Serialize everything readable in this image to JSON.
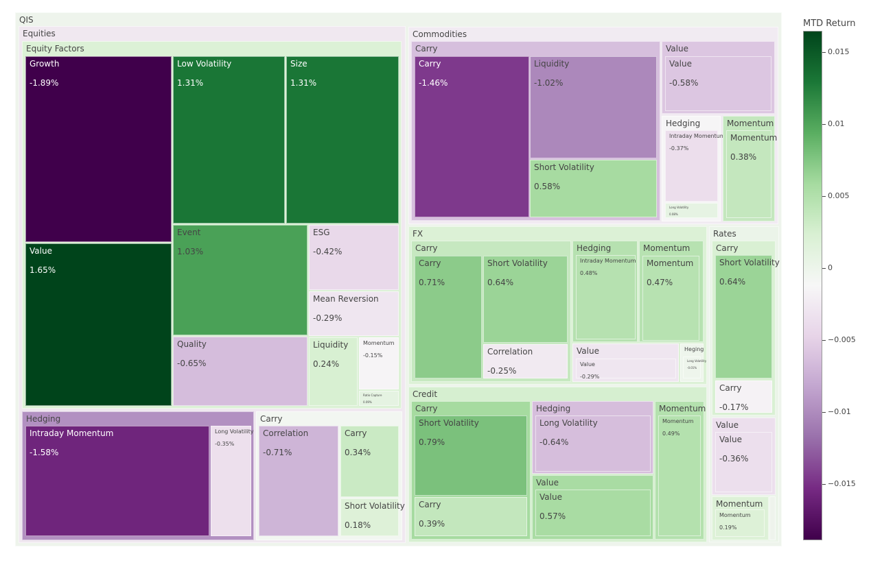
{
  "chart_data": {
    "type": "treemap",
    "title": "",
    "colorbar": {
      "title": "MTD Return",
      "colorscale": "PRGn",
      "range": [
        -0.0189,
        0.0165
      ],
      "ticks": [
        0.015,
        0.01,
        0.005,
        0,
        -0.005,
        -0.01,
        -0.015
      ],
      "tick_labels": [
        "0.015",
        "0.01",
        "0.005",
        "0",
        "−0.005",
        "−0.01",
        "−0.015"
      ]
    },
    "root": {
      "label": "QIS",
      "children": [
        {
          "label": "Equities",
          "children": [
            {
              "label": "Equity Factors",
              "children": [
                {
                  "label": "Growth",
                  "value": -0.0189,
                  "text": "-1.89%"
                },
                {
                  "label": "Value",
                  "value": 0.0165,
                  "text": "1.65%"
                },
                {
                  "label": "Low Volatility",
                  "value": 0.0131,
                  "text": "1.31%"
                },
                {
                  "label": "Size",
                  "value": 0.0131,
                  "text": "1.31%"
                },
                {
                  "label": "Event",
                  "value": 0.0103,
                  "text": "1.03%"
                },
                {
                  "label": "ESG",
                  "value": -0.0042,
                  "text": "-0.42%"
                },
                {
                  "label": "Mean Reversion",
                  "value": -0.0029,
                  "text": "-0.29%"
                },
                {
                  "label": "Quality",
                  "value": -0.0065,
                  "text": "-0.65%"
                },
                {
                  "label": "Liquidity",
                  "value": 0.0024,
                  "text": "0.24%"
                },
                {
                  "label": "Momentum",
                  "value": -0.0015,
                  "text": "-0.15%"
                },
                {
                  "label": "Ratio Capture",
                  "value": 0.0009,
                  "text": "0.09%"
                }
              ]
            },
            {
              "label": "Hedging",
              "children": [
                {
                  "label": "Intraday Momentum",
                  "value": -0.0158,
                  "text": "-1.58%"
                },
                {
                  "label": "Long Volatility",
                  "value": -0.0035,
                  "text": "-0.35%"
                }
              ]
            },
            {
              "label": "Carry",
              "children": [
                {
                  "label": "Correlation",
                  "value": -0.0071,
                  "text": "-0.71%"
                },
                {
                  "label": "Carry",
                  "value": 0.0034,
                  "text": "0.34%"
                },
                {
                  "label": "Short Volatility",
                  "value": 0.0018,
                  "text": "0.18%"
                }
              ]
            }
          ]
        },
        {
          "label": "Commodities",
          "children": [
            {
              "label": "Carry",
              "children": [
                {
                  "label": "Carry",
                  "value": -0.0146,
                  "text": "-1.46%"
                },
                {
                  "label": "Liquidity",
                  "value": -0.0102,
                  "text": "-1.02%"
                },
                {
                  "label": "Short Volatility",
                  "value": 0.0058,
                  "text": "0.58%"
                }
              ]
            },
            {
              "label": "Value",
              "children": [
                {
                  "label": "Value",
                  "value": -0.0058,
                  "text": "-0.58%"
                }
              ]
            },
            {
              "label": "Hedging",
              "children": [
                {
                  "label": "Intraday Momentum",
                  "value": -0.0037,
                  "text": "-0.37%"
                },
                {
                  "label": "Long Volatility",
                  "value": 0.0008,
                  "text": "0.08%"
                }
              ]
            },
            {
              "label": "Momentum",
              "children": [
                {
                  "label": "Momentum",
                  "value": 0.0038,
                  "text": "0.38%"
                }
              ]
            }
          ]
        },
        {
          "label": "FX",
          "children": [
            {
              "label": "Carry",
              "children": [
                {
                  "label": "Carry",
                  "value": 0.0071,
                  "text": "0.71%"
                },
                {
                  "label": "Short Volatility",
                  "value": 0.0064,
                  "text": "0.64%"
                },
                {
                  "label": "Correlation",
                  "value": -0.0025,
                  "text": "-0.25%"
                }
              ]
            },
            {
              "label": "Hedging",
              "children": [
                {
                  "label": "Intraday Momentum",
                  "value": 0.0048,
                  "text": "0.48%"
                }
              ]
            },
            {
              "label": "Momentum",
              "children": [
                {
                  "label": "Momentum",
                  "value": 0.0047,
                  "text": "0.47%"
                }
              ]
            },
            {
              "label": "Value",
              "children": [
                {
                  "label": "Value",
                  "value": -0.0029,
                  "text": "-0.29%"
                }
              ]
            },
            {
              "label": "Heging",
              "children": [
                {
                  "label": "Long Volatility",
                  "value": -0.0001,
                  "text": "-0.01%"
                }
              ]
            }
          ]
        },
        {
          "label": "Credit",
          "children": [
            {
              "label": "Carry",
              "children": [
                {
                  "label": "Short Volatility",
                  "value": 0.0079,
                  "text": "0.79%"
                },
                {
                  "label": "Carry",
                  "value": 0.0039,
                  "text": "0.39%"
                }
              ]
            },
            {
              "label": "Hedging",
              "children": [
                {
                  "label": "Long Volatility",
                  "value": -0.0064,
                  "text": "-0.64%"
                }
              ]
            },
            {
              "label": "Value",
              "children": [
                {
                  "label": "Value",
                  "value": 0.0057,
                  "text": "0.57%"
                }
              ]
            },
            {
              "label": "Momentum",
              "children": [
                {
                  "label": "Momentum",
                  "value": 0.0049,
                  "text": "0.49%"
                }
              ]
            }
          ]
        },
        {
          "label": "Rates",
          "children": [
            {
              "label": "Carry",
              "children": [
                {
                  "label": "Short Volatility",
                  "value": 0.0064,
                  "text": "0.64%"
                },
                {
                  "label": "Carry",
                  "value": -0.0017,
                  "text": "-0.17%"
                }
              ]
            },
            {
              "label": "Value",
              "children": [
                {
                  "label": "Value",
                  "value": -0.0036,
                  "text": "-0.36%"
                }
              ]
            },
            {
              "label": "Momentum",
              "children": [
                {
                  "label": "Momentum",
                  "value": 0.0019,
                  "text": "0.19%"
                }
              ]
            }
          ]
        }
      ]
    }
  }
}
